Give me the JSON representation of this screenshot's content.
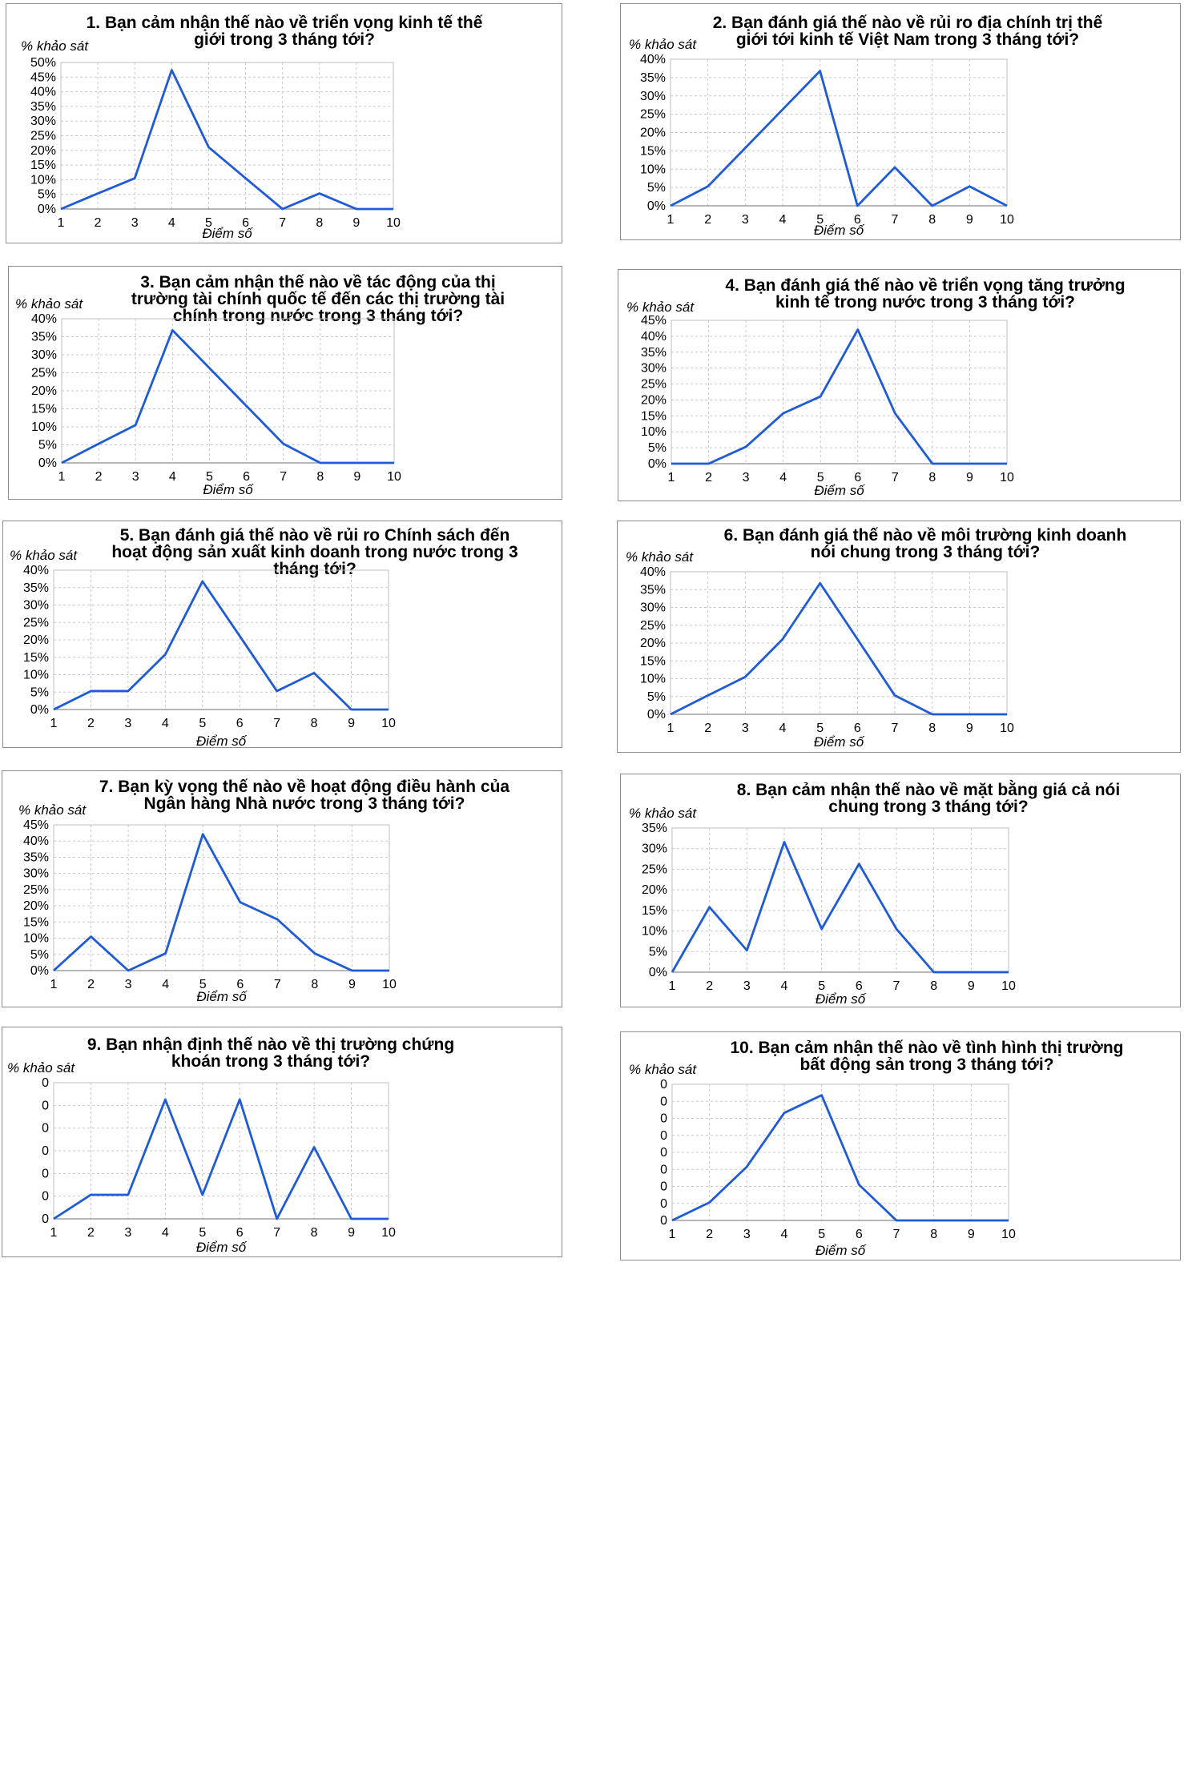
{
  "chart_data": [
    {
      "type": "line",
      "title": [
        "1. Bạn cảm nhận thế nào về triển vọng kinh tế thế",
        "giới trong 3 tháng tới?"
      ],
      "ylabel": "% khảo sát",
      "xlabel": "Điểm số",
      "categories": [
        "1",
        "2",
        "3",
        "4",
        "5",
        "6",
        "7",
        "8",
        "9",
        "10"
      ],
      "values": [
        0,
        5.3,
        10.5,
        47.4,
        21.1,
        10.5,
        0,
        5.3,
        0,
        0
      ],
      "ylim": [
        0,
        50
      ],
      "yticks": [
        "0%",
        "5%",
        "10%",
        "15%",
        "20%",
        "25%",
        "30%",
        "35%",
        "40%",
        "45%",
        "50%"
      ]
    },
    {
      "type": "line",
      "title": [
        "2. Bạn đánh giá thế nào về rủi ro địa chính trị thế",
        "giới tới kinh tế Việt Nam trong 3 tháng tới?"
      ],
      "ylabel": "% khảo sát",
      "xlabel": "Điểm số",
      "categories": [
        "1",
        "2",
        "3",
        "4",
        "5",
        "6",
        "7",
        "8",
        "9",
        "10"
      ],
      "values": [
        0,
        5.3,
        15.8,
        26.3,
        36.8,
        0,
        10.5,
        0,
        5.3,
        0
      ],
      "ylim": [
        0,
        40
      ],
      "yticks": [
        "0%",
        "5%",
        "10%",
        "15%",
        "20%",
        "25%",
        "30%",
        "35%",
        "40%"
      ]
    },
    {
      "type": "line",
      "title": [
        "3. Bạn cảm nhận thế nào về tác động của thị",
        "trường tài chính quốc tế đến các thị trường tài",
        "chính trong nước trong 3 tháng tới?"
      ],
      "ylabel": "% khảo sát",
      "xlabel": "Điểm số",
      "categories": [
        "1",
        "2",
        "3",
        "4",
        "5",
        "6",
        "7",
        "8",
        "9",
        "10"
      ],
      "values": [
        0,
        5.3,
        10.5,
        36.8,
        26.3,
        15.8,
        5.3,
        0,
        0,
        0
      ],
      "ylim": [
        0,
        40
      ],
      "yticks": [
        "0%",
        "5%",
        "10%",
        "15%",
        "20%",
        "25%",
        "30%",
        "35%",
        "40%"
      ]
    },
    {
      "type": "line",
      "title": [
        "4. Bạn đánh giá thế nào về triển vọng tăng trưởng",
        "kinh tế trong nước trong 3 tháng tới?"
      ],
      "ylabel": "% khảo sát",
      "xlabel": "Điểm số",
      "categories": [
        "1",
        "2",
        "3",
        "4",
        "5",
        "6",
        "7",
        "8",
        "9",
        "10"
      ],
      "values": [
        0,
        0,
        5.3,
        15.8,
        21.1,
        42.1,
        15.8,
        0,
        0,
        0
      ],
      "ylim": [
        0,
        45
      ],
      "yticks": [
        "0%",
        "5%",
        "10%",
        "15%",
        "20%",
        "25%",
        "30%",
        "35%",
        "40%",
        "45%"
      ]
    },
    {
      "type": "line",
      "title": [
        "5. Bạn đánh giá thế nào về rủi ro Chính sách đến",
        "hoạt động sản xuất kinh doanh trong nước trong 3",
        "tháng tới?"
      ],
      "ylabel": "% khảo sát",
      "xlabel": "Điểm số",
      "categories": [
        "1",
        "2",
        "3",
        "4",
        "5",
        "6",
        "7",
        "8",
        "9",
        "10"
      ],
      "values": [
        0,
        5.3,
        5.3,
        15.8,
        36.8,
        21.1,
        5.3,
        10.5,
        0,
        0
      ],
      "ylim": [
        0,
        40
      ],
      "yticks": [
        "0%",
        "5%",
        "10%",
        "15%",
        "20%",
        "25%",
        "30%",
        "35%",
        "40%"
      ]
    },
    {
      "type": "line",
      "title": [
        "6. Bạn đánh giá thế nào về môi trường kinh doanh",
        "nói chung trong 3 tháng tới?"
      ],
      "ylabel": "% khảo sát",
      "xlabel": "Điểm số",
      "categories": [
        "1",
        "2",
        "3",
        "4",
        "5",
        "6",
        "7",
        "8",
        "9",
        "10"
      ],
      "values": [
        0,
        5.3,
        10.5,
        21.1,
        36.8,
        21.1,
        5.3,
        0,
        0,
        0
      ],
      "ylim": [
        0,
        40
      ],
      "yticks": [
        "0%",
        "5%",
        "10%",
        "15%",
        "20%",
        "25%",
        "30%",
        "35%",
        "40%"
      ]
    },
    {
      "type": "line",
      "title": [
        "7. Bạn kỳ vọng thế nào về hoạt động điều hành của",
        "Ngân hàng Nhà nước trong 3 tháng tới?"
      ],
      "ylabel": "% khảo sát",
      "xlabel": "Điểm số",
      "categories": [
        "1",
        "2",
        "3",
        "4",
        "5",
        "6",
        "7",
        "8",
        "9",
        "10"
      ],
      "values": [
        0,
        10.5,
        0,
        5.3,
        42.1,
        21.1,
        15.8,
        5.3,
        0,
        0
      ],
      "ylim": [
        0,
        45
      ],
      "yticks": [
        "0%",
        "5%",
        "10%",
        "15%",
        "20%",
        "25%",
        "30%",
        "35%",
        "40%",
        "45%"
      ]
    },
    {
      "type": "line",
      "title": [
        "8. Bạn cảm nhận thế nào về mặt bằng giá cả nói",
        "chung trong 3 tháng tới?"
      ],
      "ylabel": "% khảo sát",
      "xlabel": "Điểm số",
      "categories": [
        "1",
        "2",
        "3",
        "4",
        "5",
        "6",
        "7",
        "8",
        "9",
        "10"
      ],
      "values": [
        0,
        15.8,
        5.3,
        31.6,
        10.5,
        26.3,
        10.5,
        0,
        0,
        0
      ],
      "ylim": [
        0,
        35
      ],
      "yticks": [
        "0%",
        "5%",
        "10%",
        "15%",
        "20%",
        "25%",
        "30%",
        "35%"
      ]
    },
    {
      "type": "line",
      "title": [
        "9. Bạn nhận định thế nào về thị trường chứng",
        "khoán trong 3 tháng tới?"
      ],
      "ylabel": "% khảo sát",
      "xlabel": "Điểm số",
      "categories": [
        "1",
        "2",
        "3",
        "4",
        "5",
        "6",
        "7",
        "8",
        "9",
        "10"
      ],
      "values": [
        0,
        5.3,
        5.3,
        26.3,
        5.3,
        26.3,
        0,
        15.8,
        0,
        0
      ],
      "ylim": [
        0,
        30
      ],
      "yticks": [
        "0",
        "0",
        "0",
        "0",
        "0",
        "0",
        "0"
      ]
    },
    {
      "type": "line",
      "title": [
        "10. Bạn cảm nhận thế nào về tình hình thị trường",
        "bất động sản trong 3 tháng tới?"
      ],
      "ylabel": "% khảo sát",
      "xlabel": "Điểm số",
      "categories": [
        "1",
        "2",
        "3",
        "4",
        "5",
        "6",
        "7",
        "8",
        "9",
        "10"
      ],
      "values": [
        0,
        5.3,
        15.8,
        31.6,
        36.8,
        10.5,
        0,
        0,
        0,
        0
      ],
      "ylim": [
        0,
        40
      ],
      "yticks": [
        "0",
        "0",
        "0",
        "0",
        "0",
        "0",
        "0",
        "0",
        "0"
      ]
    }
  ]
}
